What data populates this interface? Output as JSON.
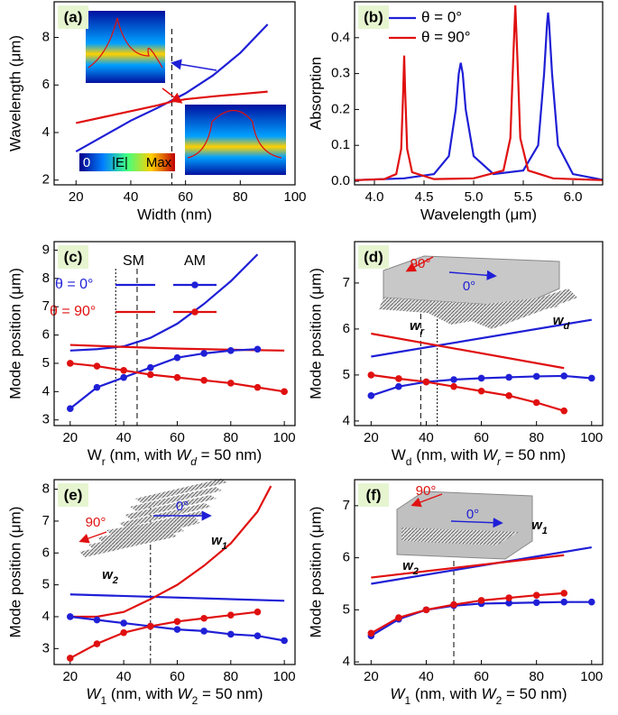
{
  "chart_data": [
    {
      "type": "line",
      "panel_label": "(a)",
      "x_label": "Width (nm)",
      "y_label": "Wavelength (μm)",
      "xlim": [
        12,
        100
      ],
      "xticks": [
        20,
        40,
        60,
        80,
        100
      ],
      "ylim": [
        1.8,
        9.5
      ],
      "yticks": [
        2,
        4,
        6,
        8
      ],
      "series": [
        {
          "color": "#1f1fd6",
          "style": "line",
          "x": [
            20,
            30,
            40,
            50,
            55,
            60,
            70,
            80,
            90
          ],
          "values": [
            3.2,
            3.85,
            4.5,
            5.05,
            5.35,
            5.65,
            6.4,
            7.35,
            8.55
          ]
        },
        {
          "color": "#e01010",
          "style": "line",
          "x": [
            20,
            30,
            40,
            50,
            55,
            60,
            70,
            80,
            90
          ],
          "values": [
            4.4,
            4.65,
            4.9,
            5.15,
            5.3,
            5.4,
            5.52,
            5.62,
            5.72
          ]
        }
      ],
      "vlines": [
        {
          "x": 55,
          "style": "dashed"
        }
      ],
      "inset_labels": [
        {
          "text": "0"
        },
        {
          "text": "|E|"
        },
        {
          "text": "Max"
        }
      ]
    },
    {
      "type": "line",
      "panel_label": "(b)",
      "x_label": "Wavelength (μm)",
      "y_label": "Absorption",
      "xlim": [
        3.8,
        6.3
      ],
      "xticks": [
        {
          "value": 4.0,
          "label": "4.0"
        },
        4.5,
        {
          "value": 5.0,
          "label": "5.0"
        },
        5.5,
        {
          "value": 6.0,
          "label": "6.0"
        }
      ],
      "ylim": [
        -0.01,
        0.5
      ],
      "yticks": [
        {
          "value": 0,
          "label": "0.0"
        },
        0.1,
        0.2,
        0.3,
        0.4
      ],
      "legend": "upper left",
      "series": [
        {
          "name": "θ = 0°",
          "color": "#1f1fd6",
          "style": "line",
          "x": [
            3.8,
            4.3,
            4.6,
            4.75,
            4.82,
            4.85,
            4.87,
            4.89,
            4.92,
            5.0,
            5.2,
            5.5,
            5.65,
            5.71,
            5.74,
            5.75,
            5.76,
            5.79,
            5.85,
            6.0,
            6.3
          ],
          "values": [
            0.003,
            0.008,
            0.02,
            0.07,
            0.2,
            0.3,
            0.33,
            0.3,
            0.2,
            0.07,
            0.02,
            0.03,
            0.1,
            0.3,
            0.44,
            0.47,
            0.44,
            0.3,
            0.1,
            0.02,
            0.004
          ]
        },
        {
          "name": "θ = 90°",
          "color": "#e01010",
          "style": "line",
          "x": [
            3.8,
            4.1,
            4.22,
            4.27,
            4.29,
            4.3,
            4.31,
            4.33,
            4.38,
            4.6,
            5.0,
            5.3,
            5.37,
            5.4,
            5.42,
            5.44,
            5.47,
            5.55,
            5.8,
            6.3
          ],
          "values": [
            0.003,
            0.006,
            0.02,
            0.09,
            0.25,
            0.35,
            0.25,
            0.09,
            0.025,
            0.006,
            0.008,
            0.03,
            0.12,
            0.35,
            0.49,
            0.35,
            0.12,
            0.03,
            0.008,
            0.003
          ]
        }
      ]
    },
    {
      "type": "line",
      "panel_label": "(c)",
      "x_label": [
        {
          "t": "W"
        },
        {
          "t": "r",
          "sub": true
        },
        {
          "t": " (nm, with "
        },
        {
          "t": "W",
          "italic": true
        },
        {
          "t": "d",
          "sub": true,
          "italic": true
        },
        {
          "t": " = 50 nm)"
        }
      ],
      "y_label": "Mode position (μm)",
      "xlim": [
        14,
        104
      ],
      "xticks": [
        20,
        40,
        60,
        80,
        100
      ],
      "ylim": [
        2.8,
        9.3
      ],
      "yticks": [
        3,
        4,
        5,
        6,
        7,
        8,
        9
      ],
      "legend_header": [
        "SM",
        "AM"
      ],
      "legend_rows": [
        "θ = 0°",
        "θ = 90°"
      ],
      "series": [
        {
          "color": "#1f1fd6",
          "style": "line",
          "x": [
            20,
            30,
            40,
            50,
            60,
            70,
            80,
            90
          ],
          "values": [
            5.45,
            5.5,
            5.6,
            5.9,
            6.4,
            7.1,
            7.9,
            8.85
          ]
        },
        {
          "color": "#e01010",
          "style": "line",
          "x": [
            20,
            40,
            60,
            80,
            100
          ],
          "values": [
            5.65,
            5.58,
            5.52,
            5.48,
            5.45
          ]
        },
        {
          "color": "#1f1fd6",
          "style": "marker",
          "x": [
            20,
            30,
            40,
            50,
            60,
            70,
            80,
            90
          ],
          "values": [
            3.4,
            4.15,
            4.5,
            4.85,
            5.2,
            5.35,
            5.45,
            5.5
          ]
        },
        {
          "color": "#e01010",
          "style": "marker",
          "x": [
            20,
            30,
            40,
            50,
            60,
            70,
            80,
            90,
            100
          ],
          "values": [
            5.0,
            4.9,
            4.75,
            4.6,
            4.5,
            4.4,
            4.3,
            4.15,
            4.0
          ]
        }
      ],
      "vlines": [
        {
          "x": 37,
          "style": "dotted"
        },
        {
          "x": 45,
          "style": "dashed"
        }
      ]
    },
    {
      "type": "line",
      "panel_label": "(d)",
      "x_label": [
        {
          "t": "W"
        },
        {
          "t": "d",
          "sub": true
        },
        {
          "t": " (nm, with "
        },
        {
          "t": "W",
          "italic": true
        },
        {
          "t": "r",
          "sub": true,
          "italic": true
        },
        {
          "t": " = 50 nm)"
        }
      ],
      "y_label": "Mode position (μm)",
      "xlim": [
        14,
        104
      ],
      "xticks": [
        20,
        40,
        60,
        80,
        100
      ],
      "ylim": [
        3.9,
        7.9
      ],
      "yticks": [
        4,
        5,
        6,
        7
      ],
      "series": [
        {
          "color": "#1f1fd6",
          "style": "line",
          "x": [
            20,
            100
          ],
          "values": [
            5.4,
            6.2
          ]
        },
        {
          "color": "#e01010",
          "style": "line",
          "x": [
            20,
            90
          ],
          "values": [
            5.9,
            5.15
          ]
        },
        {
          "color": "#1f1fd6",
          "style": "marker",
          "x": [
            20,
            30,
            40,
            50,
            60,
            70,
            80,
            90,
            100
          ],
          "values": [
            4.55,
            4.75,
            4.85,
            4.9,
            4.93,
            4.95,
            4.97,
            4.98,
            4.93
          ]
        },
        {
          "color": "#e01010",
          "style": "marker",
          "x": [
            20,
            30,
            40,
            50,
            60,
            70,
            80,
            90
          ],
          "values": [
            5.0,
            4.92,
            4.85,
            4.75,
            4.65,
            4.55,
            4.4,
            4.22
          ]
        }
      ],
      "vlines": [
        {
          "x": 38,
          "style": "dashed"
        },
        {
          "x": 44,
          "style": "dotted"
        }
      ],
      "inset_labels": [
        {
          "text": "90°"
        },
        {
          "text": "0°"
        },
        {
          "text": "w",
          "sub": "r"
        },
        {
          "text": "w",
          "sub": "d"
        }
      ]
    },
    {
      "type": "line",
      "panel_label": "(e)",
      "x_label": [
        {
          "t": "W",
          "italic": true
        },
        {
          "t": "1",
          "sub": true
        },
        {
          "t": " (nm, with "
        },
        {
          "t": "W",
          "italic": true
        },
        {
          "t": "2",
          "sub": true
        },
        {
          "t": " = 50 nm)"
        }
      ],
      "y_label": "Mode position (μm)",
      "xlim": [
        14,
        104
      ],
      "xticks": [
        20,
        40,
        60,
        80,
        100
      ],
      "ylim": [
        2.5,
        8.3
      ],
      "yticks": [
        3,
        4,
        5,
        6,
        7,
        8
      ],
      "series": [
        {
          "color": "#1f1fd6",
          "style": "line",
          "x": [
            20,
            100
          ],
          "values": [
            4.7,
            4.5
          ]
        },
        {
          "color": "#e01010",
          "style": "line",
          "x": [
            20,
            30,
            40,
            50,
            60,
            70,
            80,
            90,
            95
          ],
          "values": [
            4.0,
            4.0,
            4.15,
            4.55,
            5.0,
            5.6,
            6.3,
            7.3,
            8.1
          ]
        },
        {
          "color": "#1f1fd6",
          "style": "marker",
          "x": [
            20,
            30,
            40,
            50,
            60,
            70,
            80,
            90,
            100
          ],
          "values": [
            4.0,
            3.9,
            3.8,
            3.7,
            3.6,
            3.55,
            3.45,
            3.4,
            3.25
          ]
        },
        {
          "color": "#e01010",
          "style": "marker",
          "x": [
            20,
            30,
            40,
            50,
            60,
            70,
            80,
            90
          ],
          "values": [
            2.7,
            3.15,
            3.5,
            3.7,
            3.85,
            3.95,
            4.05,
            4.15
          ]
        }
      ],
      "vlines": [
        {
          "x": 50,
          "style": "dashdot"
        }
      ],
      "inset_labels": [
        {
          "text": "90°"
        },
        {
          "text": "0°"
        },
        {
          "text": "w",
          "sub": "1"
        },
        {
          "text": "w",
          "sub": "2"
        }
      ]
    },
    {
      "type": "line",
      "panel_label": "(f)",
      "x_label": [
        {
          "t": "W",
          "italic": true
        },
        {
          "t": "1",
          "sub": true
        },
        {
          "t": " (nm, with "
        },
        {
          "t": "W",
          "italic": true
        },
        {
          "t": "2",
          "sub": true
        },
        {
          "t": " = 50 nm)"
        }
      ],
      "y_label": "Mode position (μm)",
      "xlim": [
        14,
        104
      ],
      "xticks": [
        20,
        40,
        60,
        80,
        100
      ],
      "ylim": [
        3.95,
        7.5
      ],
      "yticks": [
        4,
        5,
        6,
        7
      ],
      "series": [
        {
          "color": "#1f1fd6",
          "style": "line",
          "x": [
            20,
            100
          ],
          "values": [
            5.5,
            6.2
          ]
        },
        {
          "color": "#e01010",
          "style": "line",
          "x": [
            20,
            90
          ],
          "values": [
            5.62,
            6.05
          ]
        },
        {
          "color": "#1f1fd6",
          "style": "marker",
          "x": [
            20,
            30,
            40,
            50,
            60,
            70,
            80,
            90,
            100
          ],
          "values": [
            4.5,
            4.82,
            5.0,
            5.08,
            5.12,
            5.13,
            5.14,
            5.15,
            5.15
          ]
        },
        {
          "color": "#e01010",
          "style": "marker",
          "x": [
            20,
            30,
            40,
            50,
            60,
            70,
            80,
            90
          ],
          "values": [
            4.55,
            4.85,
            5.0,
            5.1,
            5.18,
            5.23,
            5.28,
            5.32
          ]
        }
      ],
      "vlines": [
        {
          "x": 50,
          "style": "dashed"
        }
      ],
      "inset_labels": [
        {
          "text": "90°"
        },
        {
          "text": "0°"
        },
        {
          "text": "w",
          "sub": "1"
        },
        {
          "text": "w",
          "sub": "2"
        }
      ]
    }
  ]
}
